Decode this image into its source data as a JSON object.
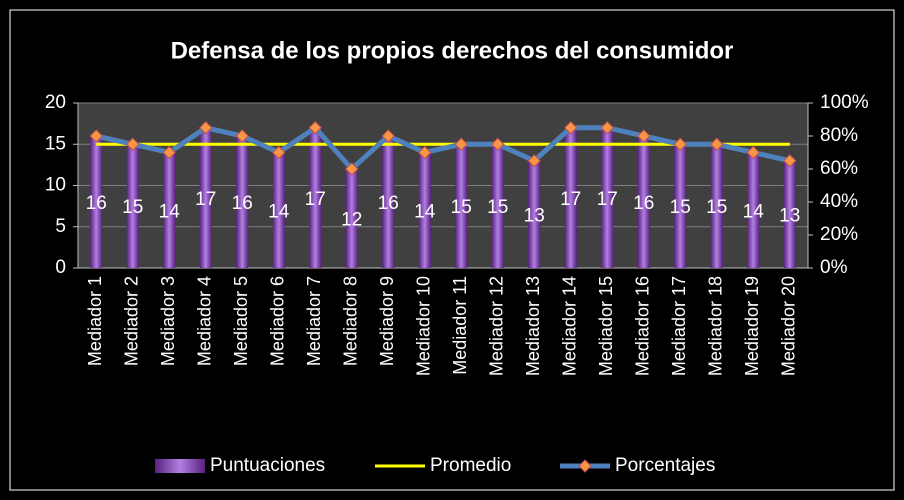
{
  "chart_data": {
    "type": "bar",
    "title": "Defensa de los propios derechos del consumidor",
    "categories": [
      "Mediador 1",
      "Mediador 2",
      "Mediador 3",
      "Mediador 4",
      "Mediador 5",
      "Mediador 6",
      "Mediador 7",
      "Mediador 8",
      "Mediador 9",
      "Mediador 10",
      "Mediador 11",
      "Mediador 12",
      "Mediador 13",
      "Mediador 14",
      "Mediador 15",
      "Mediador 16",
      "Mediador 17",
      "Mediador 18",
      "Mediador 19",
      "Mediador 20"
    ],
    "series": [
      {
        "name": "Puntuaciones",
        "type": "bar",
        "color": "#7030a0",
        "values": [
          16,
          15,
          14,
          17,
          16,
          14,
          17,
          12,
          16,
          14,
          15,
          15,
          13,
          17,
          17,
          16,
          15,
          15,
          14,
          13
        ]
      },
      {
        "name": "Promedio",
        "type": "line",
        "color": "#ffff00",
        "values": [
          15,
          15,
          15,
          15,
          15,
          15,
          15,
          15,
          15,
          15,
          15,
          15,
          15,
          15,
          15,
          15,
          15,
          15,
          15,
          15
        ]
      },
      {
        "name": "Porcentajes",
        "type": "line",
        "axis": "y2",
        "color": "#4f81bd",
        "marker_color": "#f79646",
        "values": [
          80,
          75,
          70,
          85,
          80,
          70,
          85,
          60,
          80,
          70,
          75,
          75,
          65,
          85,
          85,
          80,
          75,
          75,
          70,
          65
        ]
      }
    ],
    "ylim": [
      0,
      20
    ],
    "yticks": [
      0,
      5,
      10,
      15,
      20
    ],
    "y2lim": [
      0,
      100
    ],
    "y2ticks": [
      {
        "value": 0,
        "label": "0%"
      },
      {
        "value": 20,
        "label": "20%"
      },
      {
        "value": 40,
        "label": "40%"
      },
      {
        "value": 60,
        "label": "60%"
      },
      {
        "value": 80,
        "label": "80%"
      },
      {
        "value": 100,
        "label": "100%"
      }
    ],
    "grid": true,
    "legend": "bottom"
  }
}
